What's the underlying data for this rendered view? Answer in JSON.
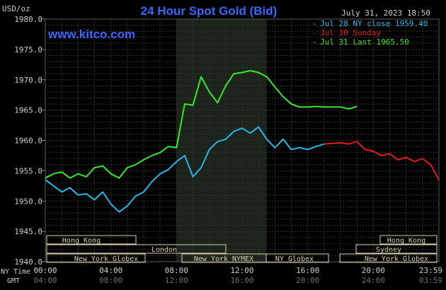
{
  "header": {
    "title": "24 Hour Spot Gold (Bid)",
    "units": "USD/oz",
    "timestamp": "July 31, 2023 18:50",
    "watermark": "www.kitco.com"
  },
  "legend": [
    {
      "label": "Jul 28 NY close 1959.40",
      "color": "#29b6e8"
    },
    {
      "label": "Jul 30 Sunday",
      "color": "#e31b1b"
    },
    {
      "label": "Jul 31 Last 1965.50",
      "color": "#39e82b"
    }
  ],
  "axis_labels": {
    "ny_time": "NY Time",
    "gmt": "GMT",
    "x_ticks_ny": [
      "00:00",
      "04:00",
      "08:00",
      "12:00",
      "16:00",
      "20:00",
      "23:59"
    ],
    "x_ticks_gmt": [
      "04:00",
      "08:00",
      "12:00",
      "16:00",
      "20:00",
      "24:00",
      "03:59"
    ]
  },
  "sessions": {
    "hong_kong": "Hong Kong",
    "london": "London",
    "ny_globex": "New York Globex",
    "ny_nymex": "New York NYMEX",
    "ny_globex_short": "NY Globex",
    "sydney": "Sydney"
  },
  "colors": {
    "background": "#000000",
    "plot": "#000000",
    "highlight": "#1b231b",
    "grid": "#3b3b3b",
    "title": "#3a66ff",
    "prev_close": "#29b6e8",
    "sunday": "#e31b1b",
    "today": "#39e82b",
    "axis_text": "#cfcfcf",
    "session_box": "#d9cfa8"
  },
  "chart_data": {
    "type": "line",
    "title": "24 Hour Spot Gold (Bid)",
    "ylabel": "USD/oz",
    "xlim": [
      0,
      24
    ],
    "ylim": [
      1940,
      1980
    ],
    "yticks": [
      1940,
      1945,
      1950,
      1955,
      1960,
      1965,
      1970,
      1975,
      1980
    ],
    "yticklabels": [
      "1940.0",
      "1945.0",
      "1950.0",
      "1955.0",
      "1960.0",
      "1965.0",
      "1970.0",
      "1975.0",
      "1980.0"
    ],
    "highlight_range_hours": [
      8,
      13.5
    ],
    "grid": true,
    "legend_position": "top-right",
    "series": [
      {
        "name": "Jul 28 NY close 1959.40",
        "color": "#29b6e8",
        "x": [
          0,
          0.5,
          1,
          1.5,
          2,
          2.5,
          3,
          3.5,
          4,
          4.5,
          5,
          5.5,
          6,
          6.5,
          7,
          7.5,
          8,
          8.5,
          9,
          9.5,
          10,
          10.5,
          11,
          11.5,
          12,
          12.5,
          13,
          13.5,
          14,
          14.5,
          15,
          15.5,
          16,
          16.5,
          17
        ],
        "y": [
          1953.5,
          1952.5,
          1951.5,
          1952.2,
          1951.0,
          1951.2,
          1950.2,
          1951.5,
          1949.5,
          1948.2,
          1949.2,
          1950.8,
          1951.5,
          1953.2,
          1954.5,
          1955.2,
          1956.5,
          1957.5,
          1954.0,
          1955.5,
          1958.5,
          1959.8,
          1960.2,
          1961.5,
          1962.0,
          1961.2,
          1962.2,
          1960.2,
          1958.8,
          1960.2,
          1958.5,
          1958.8,
          1958.5,
          1959.0,
          1959.4
        ]
      },
      {
        "name": "Jul 30 Sunday",
        "color": "#e31b1b",
        "x": [
          17,
          17.5,
          18,
          18.5,
          19,
          19.5,
          20,
          20.5,
          21,
          21.5,
          22,
          22.5,
          23,
          23.5,
          24
        ],
        "y": [
          1959.4,
          1959.5,
          1959.6,
          1959.4,
          1959.8,
          1958.5,
          1958.2,
          1957.5,
          1957.8,
          1956.8,
          1957.2,
          1956.5,
          1957.0,
          1956.0,
          1953.5
        ]
      },
      {
        "name": "Jul 31 Last 1965.50",
        "color": "#39e82b",
        "x": [
          0,
          0.5,
          1,
          1.5,
          2,
          2.5,
          3,
          3.5,
          4,
          4.5,
          5,
          5.5,
          6,
          6.5,
          7,
          7.5,
          8,
          8.5,
          9,
          9.5,
          10,
          10.5,
          11,
          11.5,
          12,
          12.5,
          13,
          13.5,
          14,
          14.5,
          15,
          15.5,
          16,
          16.5,
          17,
          17.5,
          18,
          18.5,
          19
        ],
        "y": [
          1953.8,
          1954.5,
          1954.8,
          1953.8,
          1954.5,
          1954.0,
          1955.5,
          1955.8,
          1954.5,
          1953.8,
          1955.5,
          1956.0,
          1956.8,
          1957.5,
          1958.0,
          1959.0,
          1958.8,
          1966.0,
          1965.8,
          1970.5,
          1968.0,
          1966.2,
          1969.0,
          1971.0,
          1971.2,
          1971.5,
          1971.2,
          1970.5,
          1968.8,
          1967.2,
          1966.0,
          1965.5,
          1965.5,
          1965.6,
          1965.5,
          1965.5,
          1965.5,
          1965.2,
          1965.6
        ]
      }
    ]
  }
}
